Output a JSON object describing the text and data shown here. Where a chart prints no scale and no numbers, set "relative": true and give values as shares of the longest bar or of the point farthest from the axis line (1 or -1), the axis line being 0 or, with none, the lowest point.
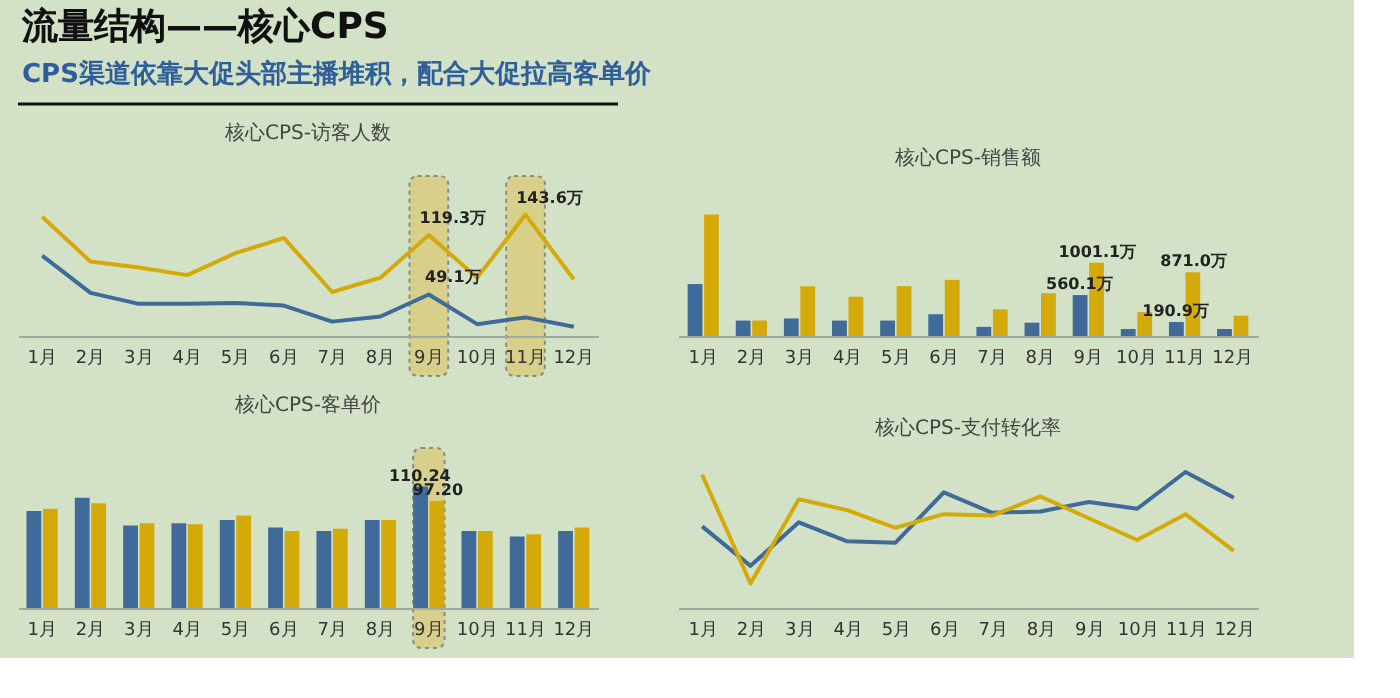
{
  "chart_data": [
    {
      "type": "other",
      "title": "流量结构——核心CPS",
      "subtitle": "CPS渠道依靠大促头部主播堆积，配合大促拉高客单价"
    },
    {
      "type": "line",
      "title": "核心CPS-访客人数",
      "categories": [
        "1月",
        "2月",
        "3月",
        "4月",
        "5月",
        "6月",
        "7月",
        "8月",
        "9月",
        "10月",
        "11月",
        "12月"
      ],
      "series": [
        {
          "color": "#3f6a9a",
          "values": [
            95,
            51,
            38,
            38,
            39,
            36,
            17,
            23,
            49.1,
            14,
            22,
            11
          ],
          "value_labels": [
            null,
            null,
            null,
            null,
            null,
            null,
            null,
            null,
            "49.1万",
            null,
            null,
            null
          ]
        },
        {
          "color": "#d4aa0a",
          "values": [
            141,
            88,
            81,
            72,
            98,
            116,
            52,
            69,
            119.3,
            69,
            143.6,
            67
          ],
          "value_labels": [
            null,
            null,
            null,
            null,
            null,
            null,
            null,
            null,
            "119.3万",
            null,
            "143.6万",
            null
          ]
        }
      ],
      "bands": [
        {
          "axis": "x",
          "from": "9月",
          "to": "9月",
          "color": "#d9c872"
        },
        {
          "axis": "x",
          "from": "11月",
          "to": "11月",
          "color": "#d9c872"
        }
      ],
      "legend": false,
      "grid": false,
      "marker": "none",
      "line_style": "solid"
    },
    {
      "type": "bar",
      "title": "核心CPS-销售额",
      "categories": [
        "1月",
        "2月",
        "3月",
        "4月",
        "5月",
        "6月",
        "7月",
        "8月",
        "9月",
        "10月",
        "11月",
        "12月"
      ],
      "series": [
        {
          "color": "#3f6a9a",
          "values": [
            710,
            211,
            240,
            211,
            211,
            298,
            125,
            182,
            560.1,
            96,
            190.9,
            96
          ],
          "value_labels": [
            null,
            null,
            null,
            null,
            null,
            null,
            null,
            null,
            "560.1万",
            null,
            "190.9万",
            null
          ]
        },
        {
          "color": "#d4aa0a",
          "values": [
            1661,
            211,
            682,
            538,
            682,
            768,
            365,
            586,
            1001.1,
            326,
            871.0,
            278
          ],
          "value_labels": [
            null,
            null,
            null,
            null,
            null,
            null,
            null,
            null,
            "1001.1万",
            null,
            "871.0万",
            null
          ]
        }
      ],
      "legend": false,
      "grid": false
    },
    {
      "type": "bar",
      "title": "核心CPS-客单价",
      "categories": [
        "1月",
        "2月",
        "3月",
        "4月",
        "5月",
        "6月",
        "7月",
        "8月",
        "9月",
        "10月",
        "11月",
        "12月"
      ],
      "series": [
        {
          "color": "#3f6a9a",
          "values": [
            88,
            100,
            75,
            77,
            80,
            73,
            70,
            80,
            110.24,
            70,
            65,
            70
          ],
          "value_labels": [
            null,
            null,
            null,
            null,
            null,
            null,
            null,
            null,
            "110.24",
            null,
            null,
            null
          ]
        },
        {
          "color": "#d4aa0a",
          "values": [
            90,
            95,
            77,
            76,
            84,
            70,
            72,
            80,
            97.2,
            70,
            67,
            73
          ],
          "value_labels": [
            null,
            null,
            null,
            null,
            null,
            null,
            null,
            null,
            "97.20",
            null,
            null,
            null
          ]
        }
      ],
      "bands": [
        {
          "axis": "x",
          "from": "9月",
          "to": "9月",
          "color": "#d9c872"
        }
      ],
      "legend": false,
      "grid": false
    },
    {
      "type": "line",
      "title": "核心CPS-支付转化率",
      "relative": true,
      "categories": [
        "1月",
        "2月",
        "3月",
        "4月",
        "5月",
        "6月",
        "7月",
        "8月",
        "9月",
        "10月",
        "11月",
        "12月"
      ],
      "series": [
        {
          "color": "#3f6a9a",
          "values": [
            0.6,
            0.31,
            0.63,
            0.49,
            0.48,
            0.85,
            0.7,
            0.71,
            0.78,
            0.73,
            1.0,
            0.81
          ]
        },
        {
          "color": "#d4aa0a",
          "values": [
            0.98,
            0.18,
            0.8,
            0.72,
            0.59,
            0.69,
            0.68,
            0.82,
            0.66,
            0.5,
            0.69,
            0.42
          ]
        }
      ],
      "legend": false,
      "grid": false,
      "marker": "none",
      "line_style": "solid"
    }
  ]
}
